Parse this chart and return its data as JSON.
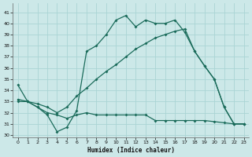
{
  "xlabel": "Humidex (Indice chaleur)",
  "bg_color": "#cce8e8",
  "grid_color": "#aad4d4",
  "line_color": "#1a6b5a",
  "xlim": [
    -0.5,
    23.5
  ],
  "ylim": [
    29.8,
    41.8
  ],
  "yticks": [
    30,
    31,
    32,
    33,
    34,
    35,
    36,
    37,
    38,
    39,
    40,
    41
  ],
  "xticks": [
    0,
    1,
    2,
    3,
    4,
    5,
    6,
    7,
    8,
    9,
    10,
    11,
    12,
    13,
    14,
    15,
    16,
    17,
    18,
    19,
    20,
    21,
    22,
    23
  ],
  "series1_x": [
    0,
    1,
    2,
    3,
    4,
    5,
    6,
    7,
    8,
    9,
    10,
    11,
    12,
    13,
    14,
    15,
    16,
    17,
    18,
    19,
    20,
    21,
    22,
    23
  ],
  "series1_y": [
    34.5,
    33.0,
    32.5,
    31.8,
    30.3,
    30.7,
    32.2,
    37.5,
    38.0,
    39.0,
    40.3,
    40.7,
    39.7,
    40.3,
    40.0,
    40.0,
    40.3,
    39.2,
    37.5,
    36.2,
    35.0,
    32.5,
    31.0,
    31.0
  ],
  "series2_x": [
    0,
    1,
    2,
    3,
    4,
    5,
    6,
    7,
    8,
    9,
    10,
    11,
    12,
    13,
    14,
    15,
    16,
    17,
    18,
    19,
    20,
    21,
    22,
    23
  ],
  "series2_y": [
    33.0,
    33.0,
    32.5,
    32.0,
    31.8,
    31.5,
    31.8,
    32.0,
    31.8,
    31.8,
    31.8,
    31.8,
    31.8,
    31.8,
    31.3,
    31.3,
    31.3,
    31.3,
    31.3,
    31.3,
    31.2,
    31.1,
    31.0,
    31.0
  ],
  "series3_x": [
    0,
    1,
    2,
    3,
    4,
    5,
    6,
    7,
    8,
    9,
    10,
    11,
    12,
    13,
    14,
    15,
    16,
    17,
    18,
    19,
    20,
    21,
    22,
    23
  ],
  "series3_y": [
    33.2,
    33.0,
    32.8,
    32.5,
    32.0,
    32.5,
    33.5,
    34.2,
    35.0,
    35.7,
    36.3,
    37.0,
    37.7,
    38.2,
    38.7,
    39.0,
    39.3,
    39.5,
    37.5,
    36.2,
    35.0,
    32.5,
    31.0,
    31.0
  ]
}
